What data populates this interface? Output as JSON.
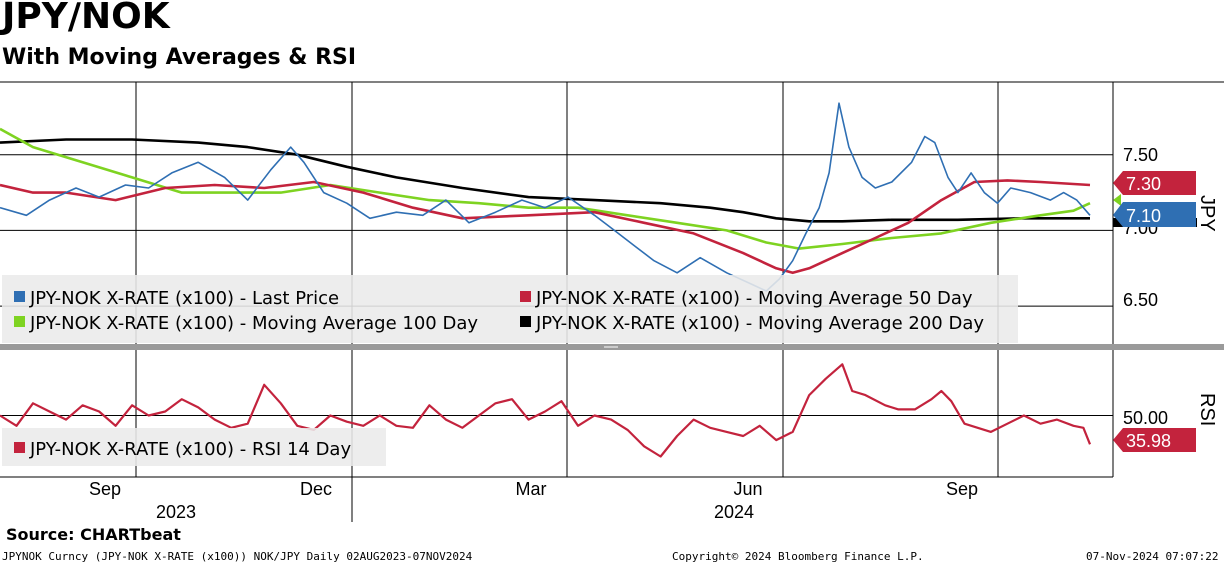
{
  "header": {
    "title": "JPY/NOK",
    "subtitle": "With Moving Averages & RSI"
  },
  "chart_data": {
    "type": "line",
    "x_ticks": [
      "Sep",
      "Dec",
      "Mar",
      "Jun",
      "Sep"
    ],
    "x_years": [
      "2023",
      "2024"
    ],
    "price_panel": {
      "axis_label": "JPY",
      "y_ticks": [
        "7.50",
        "7.00",
        "6.50"
      ],
      "ylim": [
        6.25,
        7.98
      ],
      "last_values": {
        "ma50": "7.30",
        "price": "7.10"
      },
      "x_index_range": [
        0,
        330
      ],
      "legend": [
        "JPY-NOK X-RATE (x100) - Last Price",
        "JPY-NOK X-RATE (x100) - Moving Average 50 Day",
        "JPY-NOK X-RATE (x100) - Moving Average 100 Day",
        "JPY-NOK X-RATE (x100) - Moving Average 200 Day"
      ],
      "series": [
        {
          "name": "Last Price",
          "color": "#2f6fb3",
          "points": [
            [
              0,
              7.15
            ],
            [
              8,
              7.1
            ],
            [
              15,
              7.2
            ],
            [
              23,
              7.28
            ],
            [
              30,
              7.22
            ],
            [
              38,
              7.3
            ],
            [
              45,
              7.28
            ],
            [
              52,
              7.38
            ],
            [
              60,
              7.45
            ],
            [
              68,
              7.35
            ],
            [
              75,
              7.2
            ],
            [
              82,
              7.4
            ],
            [
              88,
              7.55
            ],
            [
              92,
              7.45
            ],
            [
              98,
              7.25
            ],
            [
              105,
              7.18
            ],
            [
              112,
              7.08
            ],
            [
              120,
              7.12
            ],
            [
              128,
              7.1
            ],
            [
              135,
              7.2
            ],
            [
              142,
              7.05
            ],
            [
              150,
              7.12
            ],
            [
              158,
              7.2
            ],
            [
              165,
              7.15
            ],
            [
              172,
              7.22
            ],
            [
              180,
              7.1
            ],
            [
              186,
              7.0
            ],
            [
              192,
              6.9
            ],
            [
              198,
              6.8
            ],
            [
              205,
              6.72
            ],
            [
              212,
              6.82
            ],
            [
              220,
              6.72
            ],
            [
              227,
              6.65
            ],
            [
              232,
              6.6
            ],
            [
              236,
              6.68
            ],
            [
              240,
              6.8
            ],
            [
              244,
              6.98
            ],
            [
              248,
              7.15
            ],
            [
              251,
              7.38
            ],
            [
              254,
              7.84
            ],
            [
              257,
              7.55
            ],
            [
              261,
              7.35
            ],
            [
              265,
              7.28
            ],
            [
              270,
              7.32
            ],
            [
              276,
              7.45
            ],
            [
              280,
              7.62
            ],
            [
              283,
              7.58
            ],
            [
              287,
              7.35
            ],
            [
              290,
              7.25
            ],
            [
              294,
              7.38
            ],
            [
              298,
              7.25
            ],
            [
              302,
              7.18
            ],
            [
              306,
              7.28
            ],
            [
              312,
              7.25
            ],
            [
              318,
              7.2
            ],
            [
              322,
              7.25
            ],
            [
              326,
              7.2
            ],
            [
              330,
              7.1
            ]
          ]
        },
        {
          "name": "Moving Average 50 Day",
          "color": "#c3233d",
          "points": [
            [
              0,
              7.3
            ],
            [
              10,
              7.25
            ],
            [
              20,
              7.25
            ],
            [
              35,
              7.2
            ],
            [
              50,
              7.28
            ],
            [
              65,
              7.3
            ],
            [
              80,
              7.28
            ],
            [
              95,
              7.32
            ],
            [
              110,
              7.25
            ],
            [
              125,
              7.15
            ],
            [
              140,
              7.08
            ],
            [
              160,
              7.1
            ],
            [
              180,
              7.12
            ],
            [
              195,
              7.05
            ],
            [
              210,
              6.98
            ],
            [
              225,
              6.85
            ],
            [
              235,
              6.75
            ],
            [
              240,
              6.72
            ],
            [
              245,
              6.75
            ],
            [
              255,
              6.85
            ],
            [
              265,
              6.95
            ],
            [
              275,
              7.05
            ],
            [
              285,
              7.2
            ],
            [
              295,
              7.32
            ],
            [
              305,
              7.33
            ],
            [
              315,
              7.32
            ],
            [
              330,
              7.3
            ]
          ]
        },
        {
          "name": "Moving Average 100 Day",
          "color": "#7ed321",
          "points": [
            [
              0,
              7.67
            ],
            [
              10,
              7.55
            ],
            [
              25,
              7.45
            ],
            [
              40,
              7.35
            ],
            [
              55,
              7.25
            ],
            [
              70,
              7.25
            ],
            [
              85,
              7.25
            ],
            [
              100,
              7.3
            ],
            [
              115,
              7.25
            ],
            [
              130,
              7.2
            ],
            [
              145,
              7.18
            ],
            [
              160,
              7.15
            ],
            [
              175,
              7.15
            ],
            [
              190,
              7.1
            ],
            [
              205,
              7.05
            ],
            [
              220,
              7.0
            ],
            [
              232,
              6.92
            ],
            [
              242,
              6.88
            ],
            [
              255,
              6.91
            ],
            [
              270,
              6.95
            ],
            [
              285,
              6.98
            ],
            [
              300,
              7.05
            ],
            [
              315,
              7.1
            ],
            [
              325,
              7.13
            ],
            [
              330,
              7.18
            ]
          ]
        },
        {
          "name": "Moving Average 200 Day",
          "color": "#000000",
          "points": [
            [
              0,
              7.58
            ],
            [
              20,
              7.6
            ],
            [
              40,
              7.6
            ],
            [
              60,
              7.58
            ],
            [
              75,
              7.55
            ],
            [
              90,
              7.5
            ],
            [
              105,
              7.42
            ],
            [
              120,
              7.35
            ],
            [
              140,
              7.28
            ],
            [
              160,
              7.22
            ],
            [
              180,
              7.2
            ],
            [
              200,
              7.18
            ],
            [
              215,
              7.15
            ],
            [
              225,
              7.12
            ],
            [
              235,
              7.08
            ],
            [
              245,
              7.06
            ],
            [
              255,
              7.06
            ],
            [
              270,
              7.07
            ],
            [
              290,
              7.07
            ],
            [
              310,
              7.08
            ],
            [
              330,
              7.08
            ]
          ]
        }
      ]
    },
    "rsi_panel": {
      "axis_label": "RSI",
      "y_ticks": [
        "50.00"
      ],
      "ylim": [
        20,
        82
      ],
      "last_value": "35.98",
      "legend": [
        "JPY-NOK X-RATE (x100) - RSI 14 Day"
      ],
      "series": [
        {
          "name": "RSI 14 Day",
          "color": "#c3233d",
          "points": [
            [
              0,
              50
            ],
            [
              5,
              45
            ],
            [
              10,
              56
            ],
            [
              15,
              52
            ],
            [
              20,
              48
            ],
            [
              25,
              55
            ],
            [
              30,
              52
            ],
            [
              35,
              45
            ],
            [
              40,
              55
            ],
            [
              45,
              50
            ],
            [
              50,
              52
            ],
            [
              55,
              58
            ],
            [
              60,
              54
            ],
            [
              65,
              48
            ],
            [
              70,
              44
            ],
            [
              75,
              46
            ],
            [
              80,
              65
            ],
            [
              85,
              56
            ],
            [
              90,
              45
            ],
            [
              95,
              43
            ],
            [
              100,
              50
            ],
            [
              105,
              47
            ],
            [
              110,
              45
            ],
            [
              115,
              50
            ],
            [
              120,
              45
            ],
            [
              125,
              44
            ],
            [
              130,
              55
            ],
            [
              135,
              48
            ],
            [
              140,
              44
            ],
            [
              145,
              50
            ],
            [
              150,
              56
            ],
            [
              155,
              58
            ],
            [
              160,
              48
            ],
            [
              165,
              52
            ],
            [
              170,
              57
            ],
            [
              175,
              45
            ],
            [
              180,
              50
            ],
            [
              185,
              48
            ],
            [
              190,
              43
            ],
            [
              195,
              35
            ],
            [
              200,
              30
            ],
            [
              205,
              40
            ],
            [
              210,
              48
            ],
            [
              215,
              44
            ],
            [
              220,
              42
            ],
            [
              225,
              40
            ],
            [
              230,
              45
            ],
            [
              235,
              38
            ],
            [
              240,
              42
            ],
            [
              245,
              60
            ],
            [
              250,
              68
            ],
            [
              255,
              75
            ],
            [
              258,
              62
            ],
            [
              262,
              60
            ],
            [
              268,
              55
            ],
            [
              272,
              53
            ],
            [
              277,
              53
            ],
            [
              282,
              58
            ],
            [
              285,
              62
            ],
            [
              288,
              57
            ],
            [
              292,
              46
            ],
            [
              296,
              44
            ],
            [
              300,
              42
            ],
            [
              305,
              46
            ],
            [
              310,
              50
            ],
            [
              315,
              46
            ],
            [
              320,
              48
            ],
            [
              325,
              45
            ],
            [
              328,
              44
            ],
            [
              330,
              35.98
            ]
          ]
        }
      ]
    }
  },
  "footer": {
    "source": "Source: CHARTbeat",
    "description": "JPYNOK Curncy (JPY-NOK X-RATE  (x100)) NOK/JPY  Daily 02AUG2023-07NOV2024",
    "copyright": "Copyright© 2024 Bloomberg Finance L.P.",
    "timestamp": "07-Nov-2024 07:07:22"
  },
  "colors": {
    "price": "#2f6fb3",
    "ma50": "#c3233d",
    "ma100": "#7ed321",
    "ma200": "#000000",
    "rsi": "#c3233d",
    "legend_bg": "#ebebeb",
    "grid": "#000000"
  }
}
